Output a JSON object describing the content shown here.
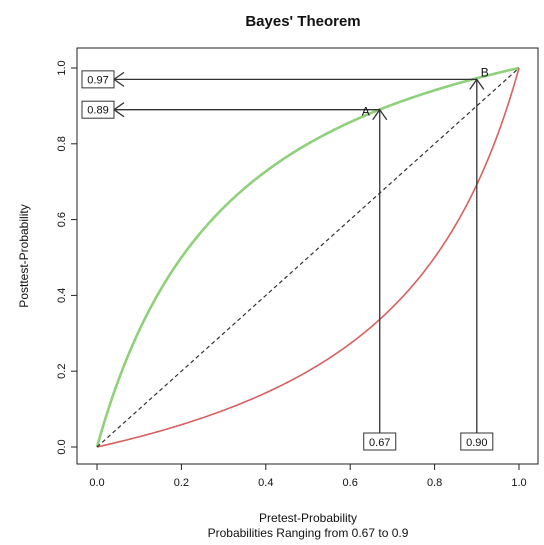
{
  "chart_data": {
    "type": "line",
    "title": "Bayes' Theorem",
    "xlabel": "Pretest-Probability",
    "subtitle": "Probabilities Ranging from  0.67  to  0.9",
    "ylabel": "Posttest-Probability",
    "xlim": [
      0,
      1
    ],
    "ylim": [
      0,
      1
    ],
    "xticks": [
      "0.0",
      "0.2",
      "0.4",
      "0.6",
      "0.8",
      "1.0"
    ],
    "yticks": [
      "0.0",
      "0.2",
      "0.4",
      "0.6",
      "0.8",
      "1.0"
    ],
    "series": [
      {
        "color": "#8fd17a",
        "likelihood_ratio": 4,
        "description": "positive test curve"
      },
      {
        "color": "#d9605f",
        "likelihood_ratio": 0.25,
        "description": "negative test curve"
      },
      {
        "color": "#333333",
        "dashed": true,
        "description": "identity line"
      }
    ],
    "markers": [
      {
        "label": "A",
        "pretest": 0.67,
        "pretest_label": "0.67",
        "posttest": 0.89,
        "posttest_label": "0.89"
      },
      {
        "label": "B",
        "pretest": 0.9,
        "pretest_label": "0.90",
        "posttest": 0.97,
        "posttest_label": "0.97"
      }
    ]
  }
}
